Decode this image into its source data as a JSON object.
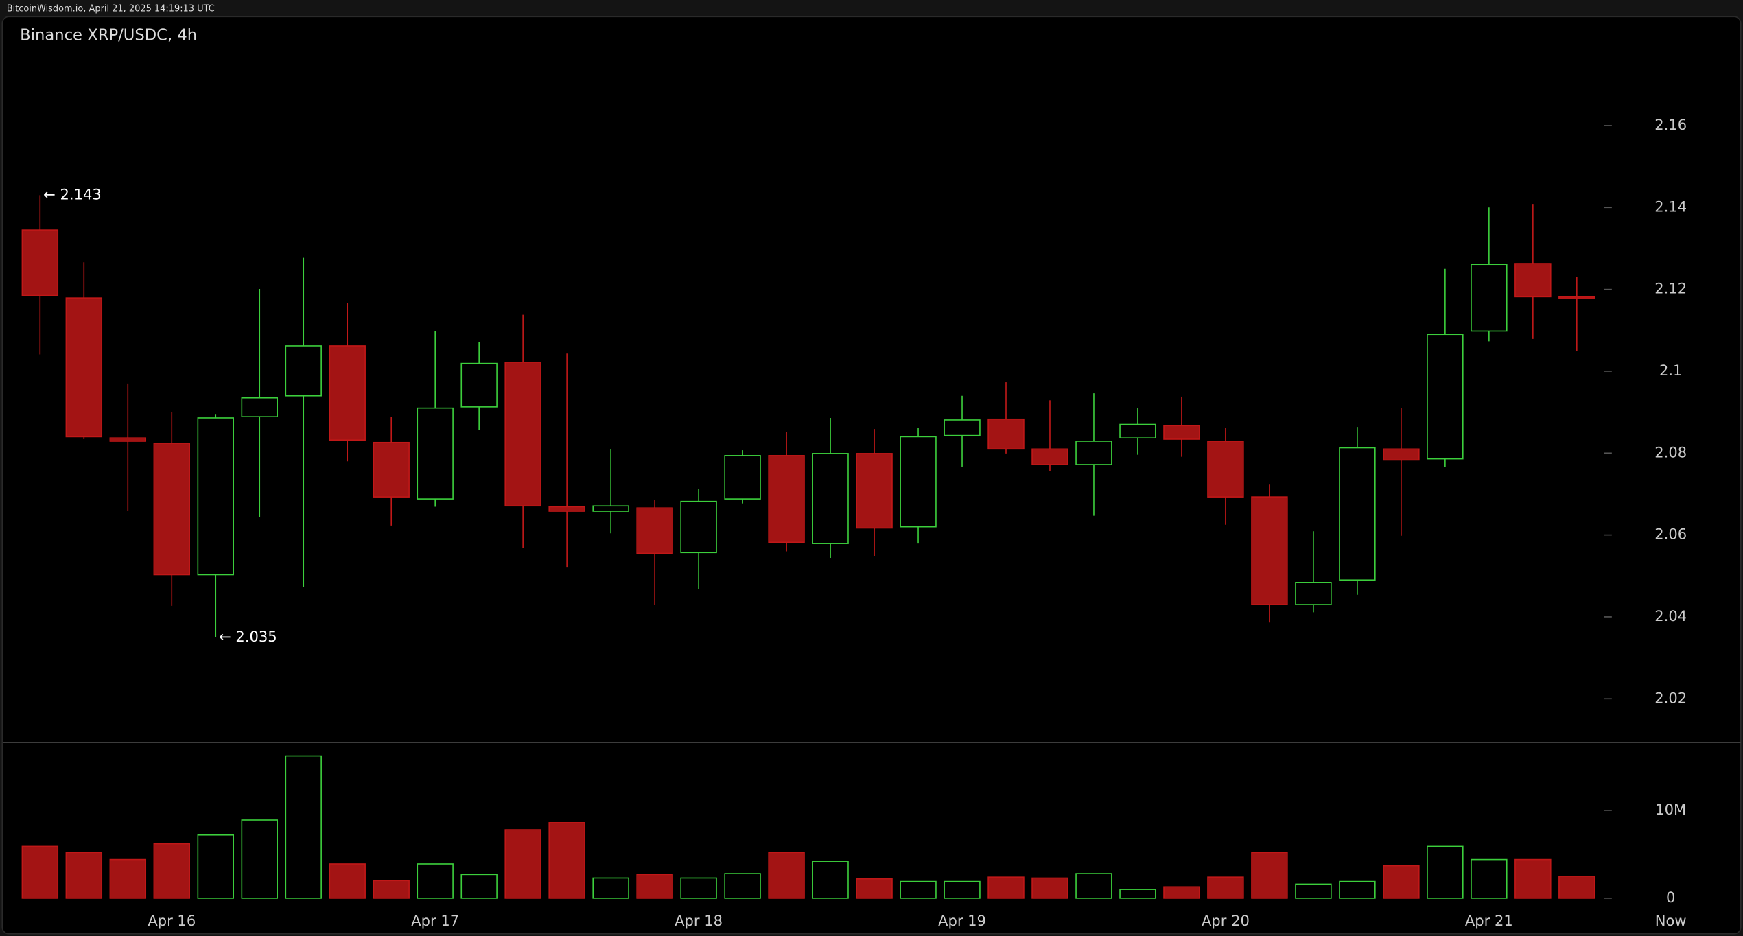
{
  "chart_data": {
    "type": "candlestick",
    "source": "BitcoinWisdom.io, April 21, 2025 14:19:13 UTC",
    "title": "Binance XRP/USDC, 4h",
    "categories": [
      null,
      null,
      null,
      "Apr 16",
      null,
      null,
      null,
      null,
      null,
      "Apr 17",
      null,
      null,
      null,
      null,
      null,
      "Apr 18",
      null,
      null,
      null,
      null,
      null,
      "Apr 19",
      null,
      null,
      null,
      null,
      null,
      "Apr 20",
      null,
      null,
      null,
      null,
      null,
      "Apr 21",
      null,
      null
    ],
    "now_label": "Now",
    "open": [
      2.1345,
      2.1179,
      2.0837,
      2.0824,
      2.0503,
      2.0889,
      2.094,
      2.1062,
      2.0826,
      2.0688,
      2.0913,
      2.1022,
      2.0669,
      2.0658,
      2.0666,
      2.0557,
      2.0688,
      2.0794,
      2.0579,
      2.0799,
      2.062,
      2.0843,
      2.0883,
      2.081,
      2.0772,
      2.0837,
      2.0867,
      2.0829,
      2.0693,
      2.043,
      2.049,
      2.081,
      2.0786,
      2.1098,
      2.1263,
      2.1182
    ],
    "high": [
      2.143,
      2.1266,
      2.097,
      2.09,
      2.0894,
      2.1201,
      2.1277,
      2.1166,
      2.0889,
      2.1098,
      2.1071,
      2.1138,
      2.1043,
      2.081,
      2.0685,
      2.0712,
      2.0807,
      2.0851,
      2.0886,
      2.0859,
      2.0862,
      2.094,
      2.0973,
      2.0929,
      2.0946,
      2.091,
      2.0938,
      2.0862,
      2.0723,
      2.0609,
      2.0864,
      2.091,
      2.125,
      2.14,
      2.1407,
      2.1231
    ],
    "low": [
      2.1041,
      2.0834,
      2.0658,
      2.0427,
      2.035,
      2.0644,
      2.0473,
      2.078,
      2.0623,
      2.0669,
      2.0856,
      2.0568,
      2.0522,
      2.0604,
      2.043,
      2.0468,
      2.0677,
      2.056,
      2.0544,
      2.0549,
      2.0579,
      2.0767,
      2.0799,
      2.0756,
      2.0647,
      2.0796,
      2.0791,
      2.0625,
      2.0386,
      2.0411,
      2.0454,
      2.0598,
      2.0767,
      2.1073,
      2.1079,
      2.1049
    ],
    "close": [
      2.1185,
      2.084,
      2.0829,
      2.0503,
      2.0886,
      2.0935,
      2.1062,
      2.0832,
      2.0693,
      2.091,
      2.1019,
      2.0671,
      2.0658,
      2.0671,
      2.0555,
      2.0682,
      2.0794,
      2.0582,
      2.0799,
      2.0617,
      2.084,
      2.0881,
      2.081,
      2.0772,
      2.0829,
      2.087,
      2.0834,
      2.0693,
      2.043,
      2.0484,
      2.0813,
      2.0783,
      2.109,
      2.1261,
      2.1182,
      2.1179
    ],
    "volume": [
      5900000,
      5200000,
      4400000,
      6200000,
      7200000,
      8900000,
      16200000,
      3900000,
      2000000,
      3900000,
      2700000,
      7800000,
      8600000,
      2300000,
      2700000,
      2300000,
      2800000,
      5200000,
      4200000,
      2200000,
      1900000,
      1900000,
      2400000,
      2300000,
      2800000,
      1000000,
      1300000,
      2400000,
      5200000,
      1600000,
      1900000,
      3700000,
      5900000,
      4400000,
      4400000,
      2500000
    ],
    "ylim": [
      2.0093,
      2.1798
    ],
    "yticks": [
      2.02,
      2.04,
      2.06,
      2.08,
      2.1,
      2.12,
      2.14,
      2.16
    ],
    "volume_ylim": [
      0,
      17720000
    ],
    "volume_ticks": [
      0,
      {
        "value": 10000000,
        "label": "10M"
      }
    ],
    "annotations": [
      {
        "text": "← 2.143",
        "value": 2.143
      },
      {
        "text": "← 2.035",
        "value": 2.035
      }
    ],
    "up_color": "#3ccf3c",
    "down_color": "#a31414"
  }
}
